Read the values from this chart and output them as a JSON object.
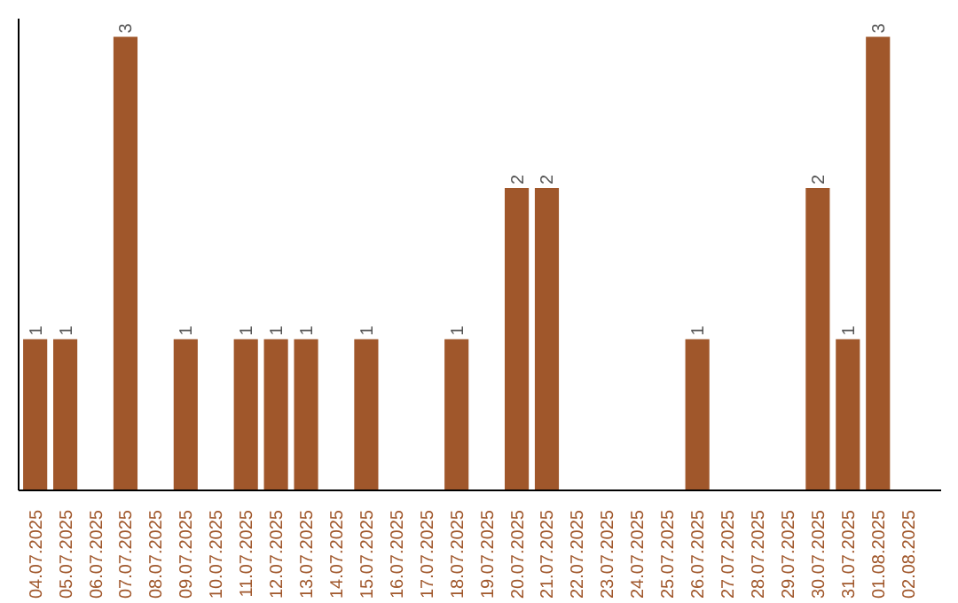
{
  "chart_data": {
    "type": "bar",
    "categories": [
      "04.07.2025",
      "05.07.2025",
      "06.07.2025",
      "07.07.2025",
      "08.07.2025",
      "09.07.2025",
      "10.07.2025",
      "11.07.2025",
      "12.07.2025",
      "13.07.2025",
      "14.07.2025",
      "15.07.2025",
      "16.07.2025",
      "17.07.2025",
      "18.07.2025",
      "19.07.2025",
      "20.07.2025",
      "21.07.2025",
      "22.07.2025",
      "23.07.2025",
      "24.07.2025",
      "25.07.2025",
      "26.07.2025",
      "27.07.2025",
      "28.07.2025",
      "29.07.2025",
      "30.07.2025",
      "31.07.2025",
      "01.08.2025",
      "02.08.2025"
    ],
    "values": [
      1,
      1,
      0,
      3,
      0,
      1,
      0,
      1,
      1,
      1,
      0,
      1,
      0,
      0,
      1,
      0,
      2,
      2,
      0,
      0,
      0,
      0,
      1,
      0,
      0,
      0,
      2,
      1,
      3,
      0
    ],
    "value_labels": [
      "1",
      "1",
      null,
      "3",
      null,
      "1",
      null,
      "1",
      "1",
      "1",
      null,
      "1",
      null,
      null,
      "1",
      null,
      "2",
      "2",
      null,
      null,
      null,
      null,
      "1",
      null,
      null,
      null,
      "2",
      "1",
      "3",
      null
    ],
    "color": "#a0572b",
    "ylim": [
      0,
      3.12
    ],
    "tick_labels": "x",
    "grid": false
  }
}
